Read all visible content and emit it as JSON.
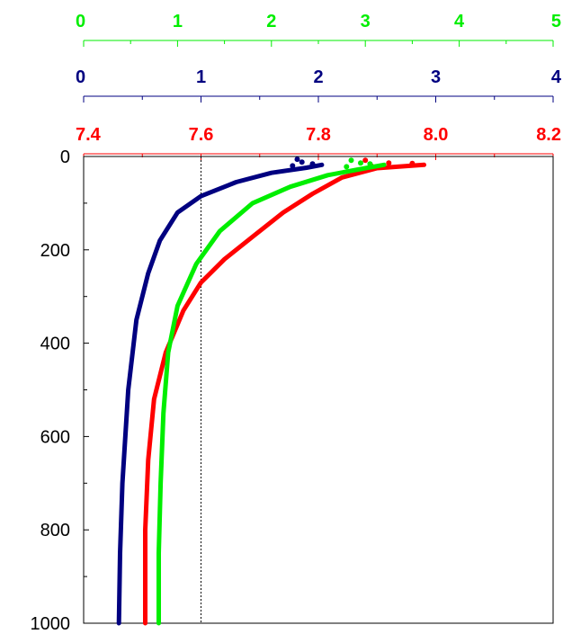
{
  "chart_data": {
    "type": "line",
    "title": "",
    "ylabel": "",
    "ylim": [
      0,
      1000
    ],
    "y_inverted": true,
    "y_ticks": [
      "0",
      "200",
      "400",
      "600",
      "800",
      "1000"
    ],
    "reference_line": {
      "x": 7.6,
      "axis": "red",
      "style": "dotted"
    },
    "grid": false,
    "axes": [
      {
        "id": "green",
        "color": "#00ee00",
        "range": [
          0,
          5
        ],
        "ticks": [
          "0",
          "1",
          "2",
          "3",
          "4",
          "5"
        ]
      },
      {
        "id": "navy",
        "color": "#000080",
        "range": [
          0,
          4
        ],
        "ticks": [
          "0",
          "1",
          "2",
          "3",
          "4"
        ]
      },
      {
        "id": "red",
        "color": "#ff0000",
        "range": [
          7.4,
          8.2
        ],
        "ticks": [
          "7.4",
          "7.6",
          "7.8",
          "8.0",
          "8.2"
        ]
      }
    ],
    "series": [
      {
        "axis": "red",
        "color": "#ff0000",
        "points": [
          [
            7.98,
            18
          ],
          [
            7.9,
            25
          ],
          [
            7.84,
            45
          ],
          [
            7.79,
            80
          ],
          [
            7.74,
            120
          ],
          [
            7.69,
            170
          ],
          [
            7.64,
            220
          ],
          [
            7.6,
            270
          ],
          [
            7.57,
            330
          ],
          [
            7.54,
            420
          ],
          [
            7.52,
            520
          ],
          [
            7.51,
            650
          ],
          [
            7.505,
            800
          ],
          [
            7.505,
            1000
          ]
        ],
        "near_surface_scatter": [
          [
            7.88,
            8
          ],
          [
            7.92,
            14
          ],
          [
            7.96,
            15
          ],
          [
            7.89,
            20
          ]
        ]
      },
      {
        "axis": "green",
        "color": "#00ee00",
        "points": [
          [
            3.2,
            18
          ],
          [
            3.0,
            25
          ],
          [
            2.6,
            40
          ],
          [
            2.2,
            65
          ],
          [
            1.8,
            100
          ],
          [
            1.45,
            160
          ],
          [
            1.2,
            230
          ],
          [
            1.0,
            320
          ],
          [
            0.9,
            420
          ],
          [
            0.85,
            550
          ],
          [
            0.82,
            700
          ],
          [
            0.8,
            850
          ],
          [
            0.8,
            1000
          ]
        ],
        "near_surface_scatter": [
          [
            2.85,
            8
          ],
          [
            2.95,
            14
          ],
          [
            3.05,
            16
          ],
          [
            2.8,
            22
          ]
        ]
      },
      {
        "axis": "navy",
        "color": "#000080",
        "points": [
          [
            2.03,
            18
          ],
          [
            1.9,
            24
          ],
          [
            1.6,
            35
          ],
          [
            1.3,
            55
          ],
          [
            1.0,
            85
          ],
          [
            0.8,
            120
          ],
          [
            0.65,
            180
          ],
          [
            0.55,
            250
          ],
          [
            0.45,
            350
          ],
          [
            0.38,
            500
          ],
          [
            0.33,
            700
          ],
          [
            0.31,
            850
          ],
          [
            0.3,
            1000
          ]
        ],
        "near_surface_scatter": [
          [
            1.82,
            6
          ],
          [
            1.86,
            12
          ],
          [
            1.95,
            16
          ],
          [
            1.78,
            20
          ]
        ]
      }
    ]
  }
}
